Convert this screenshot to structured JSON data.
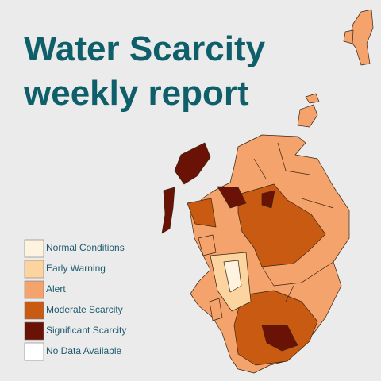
{
  "title": {
    "line1": "Water Scarcity",
    "line2": "weekly report"
  },
  "legend": [
    {
      "label": "Normal Conditions",
      "color": "#fdf3df"
    },
    {
      "label": "Early Warning",
      "color": "#fcd49f"
    },
    {
      "label": "Alert",
      "color": "#f5a36c"
    },
    {
      "label": "Moderate Scarcity",
      "color": "#c85a12"
    },
    {
      "label": "Significant Scarcity",
      "color": "#6b1206"
    },
    {
      "label": "No Data Available",
      "color": "#ffffff"
    }
  ]
}
